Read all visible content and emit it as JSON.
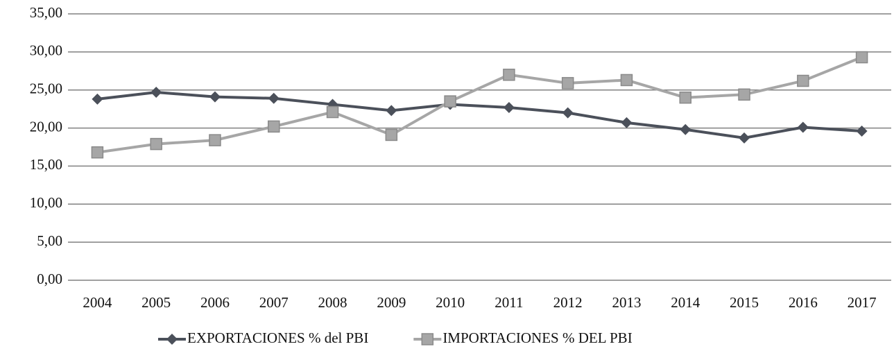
{
  "chart_data": {
    "type": "line",
    "categories": [
      "2004",
      "2005",
      "2006",
      "2007",
      "2008",
      "2009",
      "2010",
      "2011",
      "2012",
      "2013",
      "2014",
      "2015",
      "2016",
      "2017"
    ],
    "series": [
      {
        "name": "EXPORTACIONES % del PBI",
        "color": "#4b505a",
        "marker": "diamond",
        "values": [
          23.8,
          24.7,
          24.1,
          23.9,
          23.1,
          22.3,
          23.1,
          22.7,
          22.0,
          20.7,
          19.8,
          18.7,
          20.1,
          19.6
        ]
      },
      {
        "name": "IMPORTACIONES % DEL PBI",
        "color": "#a6a6a6",
        "marker": "square",
        "values": [
          16.8,
          17.9,
          18.4,
          20.2,
          22.1,
          19.1,
          23.5,
          27.0,
          25.9,
          26.3,
          24.0,
          24.4,
          26.2,
          29.3
        ]
      }
    ],
    "ylim": [
      0,
      35
    ],
    "yticks": [
      {
        "value": 0,
        "label": "0,00"
      },
      {
        "value": 5,
        "label": "5,00"
      },
      {
        "value": 10,
        "label": "10,00"
      },
      {
        "value": 15,
        "label": "15,00"
      },
      {
        "value": 20,
        "label": "20,00"
      },
      {
        "value": 25,
        "label": "25,00"
      },
      {
        "value": 30,
        "label": "30,00"
      },
      {
        "value": 35,
        "label": "35,00"
      }
    ],
    "grid": true,
    "legend": "bottom"
  }
}
